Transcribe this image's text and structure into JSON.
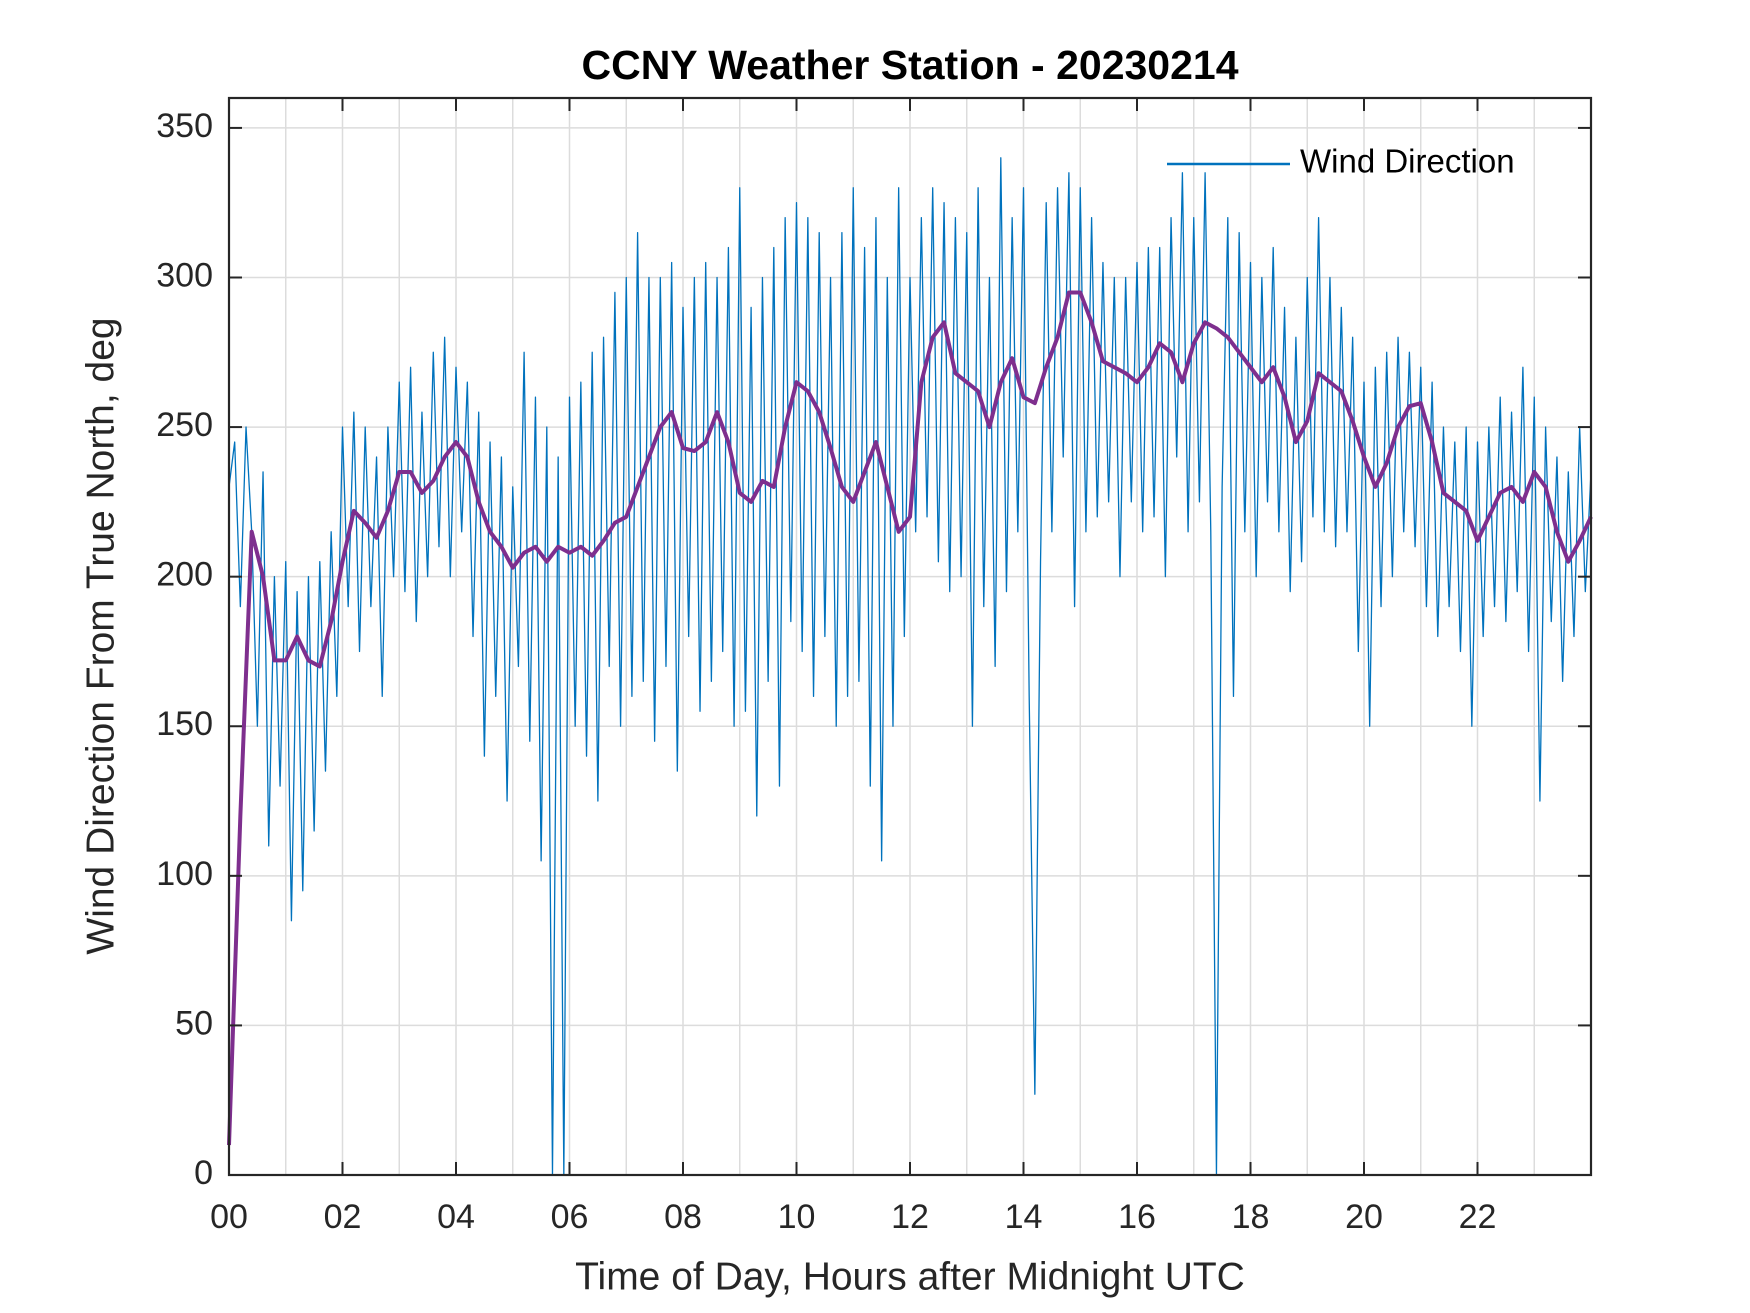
{
  "chart_data": {
    "type": "line",
    "title": "CCNY Weather Station - 20230214",
    "xlabel": "Time of Day, Hours after Midnight UTC",
    "ylabel": "Wind Direction From True North, deg",
    "xlim": [
      0,
      24
    ],
    "ylim": [
      0,
      360
    ],
    "xticks": [
      {
        "value": 0,
        "label": "00"
      },
      {
        "value": 2,
        "label": "02"
      },
      {
        "value": 4,
        "label": "04"
      },
      {
        "value": 6,
        "label": "06"
      },
      {
        "value": 8,
        "label": "08"
      },
      10,
      12,
      14,
      16,
      18,
      20,
      22
    ],
    "xminorticks": [
      1,
      3,
      5,
      7,
      9,
      11,
      13,
      15,
      17,
      19,
      21,
      23
    ],
    "yticks": [
      0,
      50,
      100,
      150,
      200,
      250,
      300,
      350
    ],
    "grid": true,
    "legend": "upper right",
    "series": [
      {
        "name": "Wind Direction",
        "color": "#0072bd",
        "width": 1.3,
        "x": [
          0,
          0.1,
          0.2,
          0.3,
          0.4,
          0.5,
          0.6,
          0.7,
          0.8,
          0.9,
          1,
          1.1,
          1.2,
          1.3,
          1.4,
          1.5,
          1.6,
          1.7,
          1.8,
          1.9,
          2,
          2.1,
          2.2,
          2.3,
          2.4,
          2.5,
          2.6,
          2.7,
          2.8,
          2.9,
          3,
          3.1,
          3.2,
          3.3,
          3.4,
          3.5,
          3.6,
          3.7,
          3.8,
          3.9,
          4,
          4.1,
          4.2,
          4.3,
          4.4,
          4.5,
          4.6,
          4.7,
          4.8,
          4.9,
          5,
          5.1,
          5.2,
          5.3,
          5.4,
          5.5,
          5.6,
          5.7,
          5.8,
          5.9,
          6,
          6.1,
          6.2,
          6.3,
          6.4,
          6.5,
          6.6,
          6.7,
          6.8,
          6.9,
          7,
          7.1,
          7.2,
          7.3,
          7.4,
          7.5,
          7.6,
          7.7,
          7.8,
          7.9,
          8,
          8.1,
          8.2,
          8.3,
          8.4,
          8.5,
          8.6,
          8.7,
          8.8,
          8.9,
          9,
          9.1,
          9.2,
          9.3,
          9.4,
          9.5,
          9.6,
          9.7,
          9.8,
          9.9,
          10,
          10.1,
          10.2,
          10.3,
          10.4,
          10.5,
          10.6,
          10.7,
          10.8,
          10.9,
          11,
          11.1,
          11.2,
          11.3,
          11.4,
          11.5,
          11.6,
          11.7,
          11.8,
          11.9,
          12,
          12.1,
          12.2,
          12.3,
          12.4,
          12.5,
          12.6,
          12.7,
          12.8,
          12.9,
          13,
          13.1,
          13.2,
          13.3,
          13.4,
          13.5,
          13.6,
          13.7,
          13.8,
          13.9,
          14,
          14.1,
          14.2,
          14.3,
          14.4,
          14.5,
          14.6,
          14.7,
          14.8,
          14.9,
          15,
          15.1,
          15.2,
          15.3,
          15.4,
          15.5,
          15.6,
          15.7,
          15.8,
          15.9,
          16,
          16.1,
          16.2,
          16.3,
          16.4,
          16.5,
          16.6,
          16.7,
          16.8,
          16.9,
          17,
          17.1,
          17.2,
          17.3,
          17.4,
          17.5,
          17.6,
          17.7,
          17.8,
          17.9,
          18,
          18.1,
          18.2,
          18.3,
          18.4,
          18.5,
          18.6,
          18.7,
          18.8,
          18.9,
          19,
          19.1,
          19.2,
          19.3,
          19.4,
          19.5,
          19.6,
          19.7,
          19.8,
          19.9,
          20,
          20.1,
          20.2,
          20.3,
          20.4,
          20.5,
          20.6,
          20.7,
          20.8,
          20.9,
          21,
          21.1,
          21.2,
          21.3,
          21.4,
          21.5,
          21.6,
          21.7,
          21.8,
          21.9,
          22,
          22.1,
          22.2,
          22.3,
          22.4,
          22.5,
          22.6,
          22.7,
          22.8,
          22.9,
          23,
          23.1,
          23.2,
          23.3,
          23.4,
          23.5,
          23.6,
          23.7,
          23.8,
          23.9,
          24
        ],
        "values": [
          230,
          245,
          190,
          250,
          215,
          150,
          235,
          110,
          200,
          130,
          205,
          85,
          195,
          95,
          200,
          115,
          205,
          135,
          215,
          160,
          250,
          190,
          255,
          175,
          250,
          190,
          240,
          160,
          250,
          200,
          265,
          195,
          270,
          185,
          255,
          200,
          275,
          210,
          280,
          200,
          270,
          215,
          265,
          180,
          255,
          140,
          245,
          160,
          240,
          125,
          230,
          170,
          275,
          145,
          260,
          105,
          250,
          0,
          240,
          0,
          260,
          150,
          265,
          140,
          275,
          125,
          280,
          170,
          295,
          150,
          300,
          160,
          315,
          165,
          300,
          145,
          300,
          170,
          305,
          135,
          290,
          180,
          300,
          155,
          305,
          165,
          300,
          175,
          310,
          150,
          330,
          155,
          290,
          120,
          300,
          165,
          310,
          130,
          320,
          185,
          325,
          175,
          320,
          160,
          315,
          180,
          300,
          150,
          315,
          160,
          330,
          165,
          310,
          130,
          320,
          105,
          300,
          150,
          330,
          180,
          300,
          215,
          320,
          220,
          330,
          205,
          325,
          195,
          320,
          200,
          315,
          150,
          330,
          190,
          300,
          170,
          340,
          195,
          320,
          215,
          330,
          160,
          27,
          205,
          325,
          215,
          330,
          240,
          335,
          190,
          330,
          215,
          320,
          220,
          305,
          225,
          300,
          200,
          300,
          225,
          305,
          215,
          310,
          220,
          310,
          200,
          320,
          240,
          335,
          215,
          320,
          225,
          335,
          215,
          0,
          230,
          320,
          160,
          315,
          215,
          305,
          200,
          300,
          225,
          310,
          215,
          290,
          195,
          280,
          205,
          300,
          220,
          320,
          215,
          300,
          210,
          290,
          215,
          280,
          175,
          265,
          150,
          270,
          190,
          275,
          200,
          280,
          215,
          275,
          210,
          270,
          190,
          265,
          180,
          250,
          190,
          245,
          175,
          250,
          150,
          245,
          180,
          250,
          190,
          260,
          185,
          255,
          195,
          270,
          175,
          260,
          125,
          250,
          185,
          240,
          165,
          235,
          180,
          250,
          195,
          235
        ]
      },
      {
        "color": "#7e2f8e",
        "width": 4,
        "x": [
          0,
          0.2,
          0.4,
          0.6,
          0.8,
          1,
          1.2,
          1.4,
          1.6,
          1.8,
          2,
          2.2,
          2.4,
          2.6,
          2.8,
          3,
          3.2,
          3.4,
          3.6,
          3.8,
          4,
          4.2,
          4.4,
          4.6,
          4.8,
          5,
          5.2,
          5.4,
          5.6,
          5.8,
          6,
          6.2,
          6.4,
          6.6,
          6.8,
          7,
          7.2,
          7.4,
          7.6,
          7.8,
          8,
          8.2,
          8.4,
          8.6,
          8.8,
          9,
          9.2,
          9.4,
          9.6,
          9.8,
          10,
          10.2,
          10.4,
          10.6,
          10.8,
          11,
          11.2,
          11.4,
          11.6,
          11.8,
          12,
          12.2,
          12.4,
          12.6,
          12.8,
          13,
          13.2,
          13.4,
          13.6,
          13.8,
          14,
          14.2,
          14.4,
          14.6,
          14.8,
          15,
          15.2,
          15.4,
          15.6,
          15.8,
          16,
          16.2,
          16.4,
          16.6,
          16.8,
          17,
          17.2,
          17.4,
          17.6,
          17.8,
          18,
          18.2,
          18.4,
          18.6,
          18.8,
          19,
          19.2,
          19.4,
          19.6,
          19.8,
          20,
          20.2,
          20.4,
          20.6,
          20.8,
          21,
          21.2,
          21.4,
          21.6,
          21.8,
          22,
          22.2,
          22.4,
          22.6,
          22.8,
          23,
          23.2,
          23.4,
          23.6,
          23.8,
          24
        ],
        "values": [
          10,
          120,
          215,
          200,
          172,
          172,
          180,
          172,
          170,
          185,
          205,
          222,
          218,
          213,
          222,
          235,
          235,
          228,
          232,
          240,
          245,
          240,
          225,
          215,
          210,
          203,
          208,
          210,
          205,
          210,
          208,
          210,
          207,
          212,
          218,
          220,
          230,
          240,
          250,
          255,
          243,
          242,
          245,
          255,
          245,
          228,
          225,
          232,
          230,
          250,
          265,
          262,
          255,
          243,
          230,
          225,
          235,
          245,
          230,
          215,
          220,
          265,
          280,
          285,
          268,
          265,
          262,
          250,
          265,
          273,
          260,
          258,
          270,
          280,
          295,
          295,
          285,
          272,
          270,
          268,
          265,
          270,
          278,
          275,
          265,
          278,
          285,
          283,
          280,
          275,
          270,
          265,
          270,
          260,
          245,
          252,
          268,
          265,
          262,
          252,
          240,
          230,
          238,
          250,
          257,
          258,
          245,
          228,
          225,
          222,
          212,
          220,
          228,
          230,
          225,
          235,
          230,
          215,
          205,
          212,
          220
        ]
      }
    ]
  }
}
